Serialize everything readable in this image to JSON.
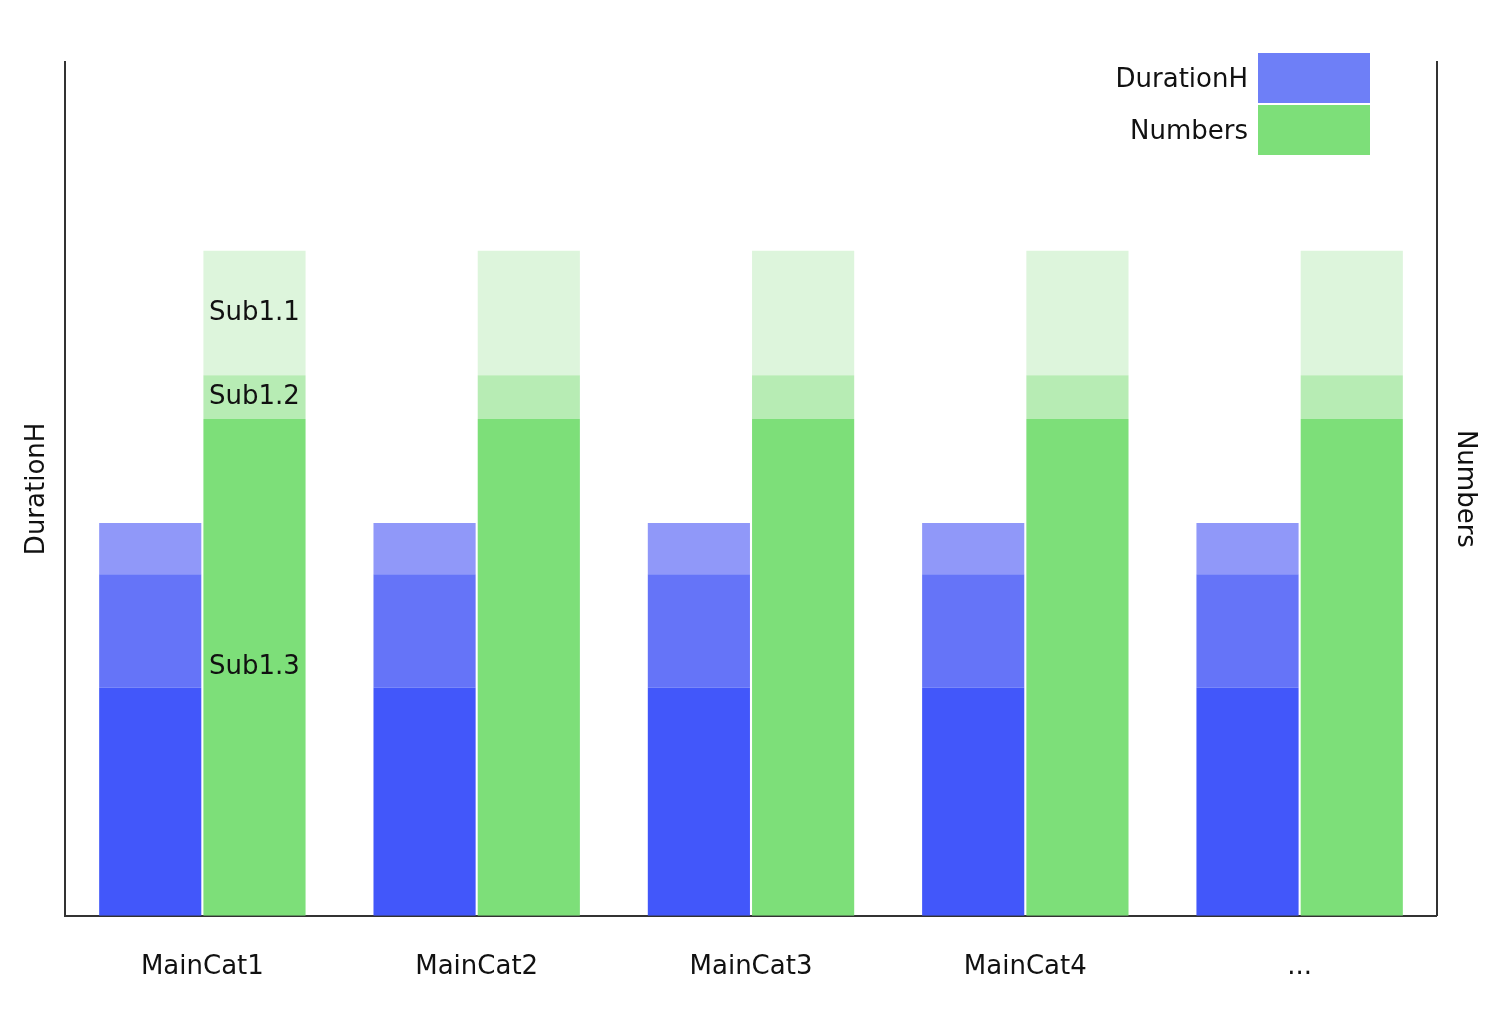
{
  "chart_data": {
    "type": "bar",
    "stacked": true,
    "categories": [
      "MainCat1",
      "MainCat2",
      "MainCat3",
      "MainCat4",
      "..."
    ],
    "ylabel": "DurationH",
    "y2label": "Numbers",
    "ylim": [
      0,
      100
    ],
    "y2lim": [
      0,
      100
    ],
    "tick_labels": false,
    "grid": false,
    "legend": "upper right",
    "stacks": [
      {
        "name": "DurationH",
        "color": "#6e7ff7",
        "axis": "y"
      },
      {
        "name": "Numbers",
        "color": "#7ddf79",
        "axis": "y2"
      }
    ],
    "series": [
      {
        "stack": "DurationH",
        "axis": "y",
        "color": "#4257fa",
        "values": [
          26.7,
          26.7,
          26.7,
          26.7,
          26.7
        ]
      },
      {
        "stack": "DurationH",
        "axis": "y",
        "color": "#6574f8",
        "values": [
          13.3,
          13.3,
          13.3,
          13.3,
          13.3
        ]
      },
      {
        "stack": "DurationH",
        "axis": "y",
        "color": "#9098f9",
        "values": [
          6.0,
          6.0,
          6.0,
          6.0,
          6.0
        ]
      },
      {
        "name": "Sub1.3",
        "stack": "Numbers",
        "axis": "y2",
        "color": "#7ddf79",
        "values": [
          58.2,
          58.2,
          58.2,
          58.2,
          58.2
        ]
      },
      {
        "name": "Sub1.2",
        "stack": "Numbers",
        "axis": "y2",
        "color": "#b7ecb4",
        "values": [
          5.1,
          5.1,
          5.1,
          5.1,
          5.1
        ]
      },
      {
        "name": "Sub1.1",
        "stack": "Numbers",
        "axis": "y2",
        "color": "#ddf5dc",
        "values": [
          14.6,
          14.6,
          14.6,
          14.6,
          14.6
        ]
      }
    ],
    "series_labels_at": "MainCat1"
  }
}
